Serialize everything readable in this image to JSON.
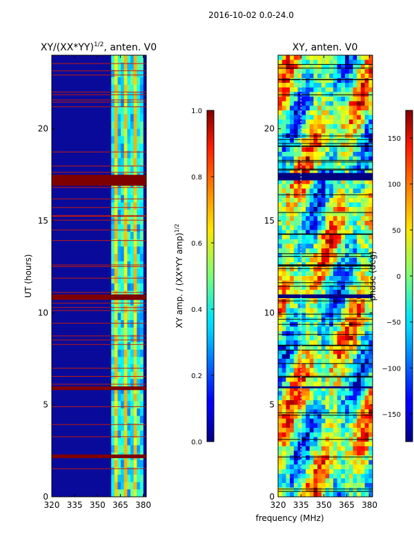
{
  "figure": {
    "suptitle": "2016-10-02 0.0-24.0",
    "xlabel_shared": "frequency (MHz)"
  },
  "chart_data": [
    {
      "type": "heatmap",
      "title": "XY/(XX*YY)",
      "title_exponent": "1/2",
      "title_suffix": ", anten. V0",
      "xlabel": "",
      "ylabel": "UT (hours)",
      "xlim": [
        320,
        382
      ],
      "ylim": [
        0,
        24
      ],
      "xticks": [
        320,
        335,
        350,
        365,
        380
      ],
      "yticks": [
        0,
        5,
        10,
        15,
        20
      ],
      "colorbar": {
        "label": "XY amp. / (XX*YY amp)",
        "label_exponent": "1/2",
        "range": [
          0.0,
          1.0
        ],
        "ticks": [
          0.0,
          0.2,
          0.4,
          0.6,
          0.8,
          1.0
        ],
        "tick_labels": [
          "0.0",
          "0.2",
          "0.4",
          "0.6",
          "0.8",
          "1.0"
        ]
      },
      "features": {
        "high_amplitude_band_MHz": [
          359,
          380
        ],
        "saturated_rows_UT": [
          [
            16.9,
            17.5
          ],
          [
            10.7,
            11.0
          ],
          [
            5.8,
            6.0
          ],
          [
            2.1,
            2.3
          ]
        ]
      }
    },
    {
      "type": "heatmap",
      "title": "XY, anten. V0",
      "xlabel": "",
      "ylabel": "",
      "xlim": [
        320,
        382
      ],
      "ylim": [
        0,
        24
      ],
      "xticks": [
        320,
        335,
        350,
        365,
        380
      ],
      "yticks": [
        0,
        5,
        10,
        15,
        20
      ],
      "colorbar": {
        "label": "phase (deg)",
        "range": [
          -180,
          180
        ],
        "ticks": [
          -150,
          -100,
          -50,
          0,
          50,
          100,
          150
        ],
        "tick_labels": [
          "−150",
          "−100",
          "−50",
          "0",
          "50",
          "100",
          "150"
        ]
      },
      "features": {
        "blank_rows_UT": [
          [
            17.2,
            17.6
          ],
          [
            10.8,
            11.0
          ],
          [
            5.9,
            6.0
          ]
        ]
      }
    }
  ]
}
